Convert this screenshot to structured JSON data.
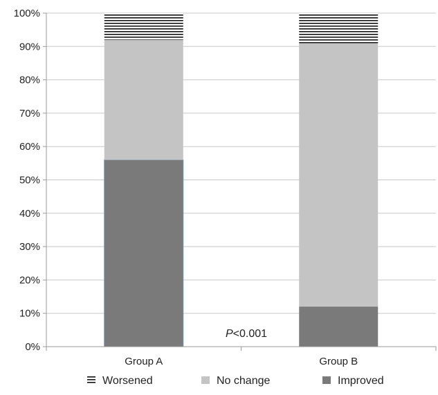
{
  "chart_data": {
    "type": "bar",
    "stacked": true,
    "categories": [
      "Group A",
      "Group B"
    ],
    "series": [
      {
        "name": "Improved",
        "values": [
          56,
          12
        ],
        "color": "#7a7a7a",
        "pattern": "solid"
      },
      {
        "name": "No change",
        "values": [
          36,
          79
        ],
        "color": "#c4c4c4",
        "pattern": "solid"
      },
      {
        "name": "Worsened",
        "values": [
          8,
          9
        ],
        "color": "#111111",
        "pattern": "horizontal-lines"
      }
    ],
    "legend_order": [
      "Worsened",
      "No change",
      "Improved"
    ],
    "ylim": [
      0,
      100
    ],
    "yticks": [
      0,
      10,
      20,
      30,
      40,
      50,
      60,
      70,
      80,
      90,
      100
    ],
    "ytick_suffix": "%",
    "grid": true,
    "legend_position": "bottom",
    "annotation": {
      "italic": "P",
      "rest": "<0.001"
    },
    "title": "",
    "xlabel": "",
    "ylabel": ""
  }
}
